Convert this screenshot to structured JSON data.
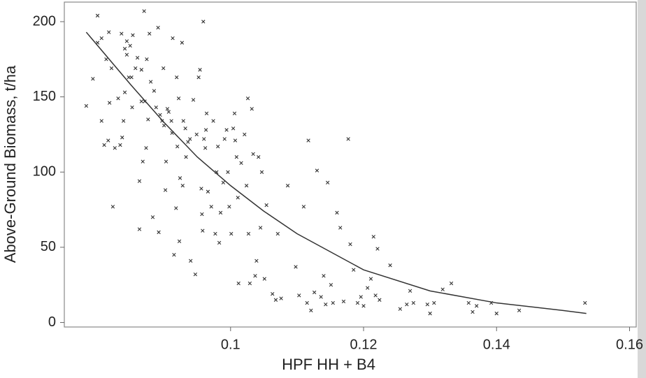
{
  "chart_data": {
    "type": "scatter",
    "xlabel": "HPF HH + B4",
    "ylabel": "Above-Ground Biomass, t/ha",
    "xlim": [
      0.075,
      0.161
    ],
    "ylim": [
      -3,
      213
    ],
    "xticks": [
      0.1,
      0.12,
      0.14,
      0.16
    ],
    "yticks": [
      0,
      50,
      100,
      150,
      200
    ],
    "grid": false,
    "series": [
      {
        "color": "#333333",
        "x": [
          0.0783,
          0.0793,
          0.08,
          0.08,
          0.0806,
          0.0806,
          0.081,
          0.0813,
          0.0816,
          0.0818,
          0.0817,
          0.0821,
          0.0823,
          0.0826,
          0.0831,
          0.0834,
          0.0836,
          0.0837,
          0.0839,
          0.0841,
          0.0841,
          0.0844,
          0.0844,
          0.0847,
          0.0851,
          0.0849,
          0.0852,
          0.0853,
          0.086,
          0.0857,
          0.0863,
          0.0863,
          0.0866,
          0.0866,
          0.0868,
          0.087,
          0.0871,
          0.0873,
          0.0874,
          0.0876,
          0.0878,
          0.088,
          0.0883,
          0.0885,
          0.0888,
          0.0891,
          0.0892,
          0.0894,
          0.0897,
          0.0899,
          0.09,
          0.0902,
          0.0903,
          0.0905,
          0.0907,
          0.0911,
          0.0912,
          0.0913,
          0.0915,
          0.0918,
          0.0919,
          0.092,
          0.0922,
          0.0923,
          0.0924,
          0.0927,
          0.0928,
          0.0929,
          0.0932,
          0.0933,
          0.0936,
          0.0939,
          0.094,
          0.0944,
          0.0947,
          0.0949,
          0.0952,
          0.0954,
          0.0956,
          0.0957,
          0.0958,
          0.0959,
          0.096,
          0.0962,
          0.0963,
          0.0964,
          0.0966,
          0.0971,
          0.0974,
          0.0977,
          0.0979,
          0.0981,
          0.0983,
          0.0985,
          0.0989,
          0.0991,
          0.0994,
          0.0996,
          0.0998,
          0.1001,
          0.1004,
          0.1006,
          0.1007,
          0.1009,
          0.1011,
          0.1012,
          0.1016,
          0.1021,
          0.1024,
          0.1026,
          0.1027,
          0.1029,
          0.1032,
          0.1034,
          0.1037,
          0.1039,
          0.1042,
          0.1045,
          0.1047,
          0.1051,
          0.1054,
          0.1063,
          0.1068,
          0.1071,
          0.1076,
          0.1086,
          0.1098,
          0.1103,
          0.111,
          0.1115,
          0.1117,
          0.1121,
          0.1126,
          0.113,
          0.1136,
          0.114,
          0.1143,
          0.1146,
          0.1151,
          0.1154,
          0.116,
          0.1165,
          0.117,
          0.1177,
          0.118,
          0.1185,
          0.1191,
          0.1196,
          0.12,
          0.1206,
          0.1211,
          0.1215,
          0.1218,
          0.1221,
          0.1224,
          0.124,
          0.1255,
          0.1265,
          0.127,
          0.1275,
          0.1296,
          0.13,
          0.1306,
          0.1319,
          0.1332,
          0.1358,
          0.1364,
          0.137,
          0.1392,
          0.14,
          0.1434,
          0.1533
        ],
        "values": [
          144,
          162,
          204,
          186,
          189,
          134,
          118,
          175,
          121,
          146,
          193,
          169,
          77,
          116,
          149,
          118,
          192,
          123,
          134,
          182,
          153,
          187,
          178,
          163,
          163,
          184,
          143,
          191,
          176,
          169,
          62,
          94,
          168,
          147,
          107,
          207,
          147,
          116,
          175,
          135,
          192,
          160,
          70,
          154,
          143,
          196,
          60,
          138,
          134,
          169,
          131,
          88,
          107,
          142,
          140,
          134,
          126,
          189,
          45,
          76,
          163,
          117,
          149,
          54,
          96,
          186,
          91,
          134,
          129,
          110,
          120,
          122,
          41,
          148,
          32,
          125,
          163,
          168,
          89,
          72,
          61,
          200,
          122,
          116,
          128,
          139,
          87,
          77,
          134,
          59,
          100,
          117,
          53,
          73,
          93,
          122,
          128,
          100,
          77,
          59,
          129,
          139,
          121,
          110,
          83,
          26,
          106,
          125,
          91,
          149,
          59,
          26,
          142,
          112,
          31,
          41,
          110,
          63,
          100,
          29,
          78,
          19,
          15,
          59,
          16,
          91,
          37,
          18,
          77,
          13,
          121,
          8,
          20,
          101,
          17,
          31,
          12,
          93,
          25,
          13,
          73,
          63,
          14,
          122,
          52,
          35,
          13,
          17,
          11,
          23,
          29,
          57,
          18,
          49,
          15,
          38,
          9,
          12,
          21,
          13,
          12,
          6,
          13,
          22,
          26,
          13,
          7,
          11,
          13,
          6,
          8,
          13
        ]
      },
      {
        "color": "#333333",
        "line": true,
        "x": [
          0.0783,
          0.085,
          0.09,
          0.095,
          0.1,
          0.105,
          0.11,
          0.12,
          0.13,
          0.14,
          0.15,
          0.1535
        ],
        "values": [
          193,
          158,
          133,
          110,
          91,
          74,
          59,
          35,
          21,
          13,
          8,
          6
        ]
      }
    ]
  }
}
